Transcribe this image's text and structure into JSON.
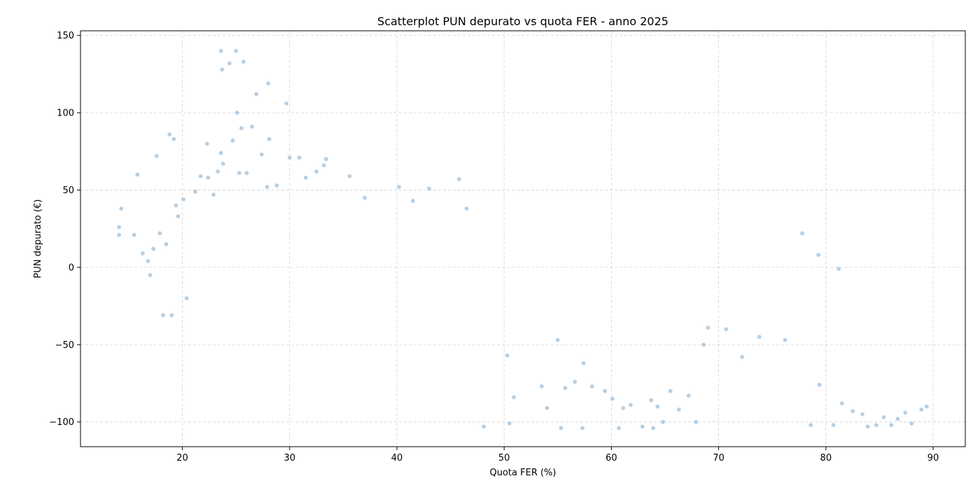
{
  "chart_data": {
    "type": "scatter",
    "title": "Scatterplot PUN depurato vs quota FER - anno 2025",
    "xlabel": "Quota FER (%)",
    "ylabel": "PUN depurato (€)",
    "xlim": [
      10.5,
      93
    ],
    "ylim": [
      -116,
      153
    ],
    "xticks": [
      20,
      30,
      40,
      50,
      60,
      70,
      80,
      90
    ],
    "yticks": [
      -100,
      -50,
      0,
      50,
      100,
      150
    ],
    "xtick_labels": [
      "20",
      "30",
      "40",
      "50",
      "60",
      "70",
      "80",
      "90"
    ],
    "ytick_labels": [
      "−100",
      "−50",
      "0",
      "50",
      "100",
      "150"
    ],
    "grid": true,
    "marker_color": "#4a86b8",
    "marker_opacity": 0.4,
    "series": [
      {
        "points": [
          [
            14.1,
            26
          ],
          [
            14.1,
            21
          ],
          [
            14.3,
            38
          ],
          [
            15.5,
            21
          ],
          [
            15.8,
            60
          ],
          [
            16.3,
            9
          ],
          [
            16.8,
            4
          ],
          [
            17.0,
            -5
          ],
          [
            17.3,
            12
          ],
          [
            17.6,
            72
          ],
          [
            17.9,
            22
          ],
          [
            18.2,
            -31
          ],
          [
            18.5,
            15
          ],
          [
            18.8,
            86
          ],
          [
            19.0,
            -31
          ],
          [
            19.2,
            83
          ],
          [
            19.4,
            40
          ],
          [
            19.6,
            33
          ],
          [
            20.1,
            44
          ],
          [
            20.4,
            -20
          ],
          [
            21.2,
            49
          ],
          [
            21.7,
            59
          ],
          [
            22.3,
            80
          ],
          [
            22.4,
            58
          ],
          [
            22.9,
            47
          ],
          [
            23.3,
            62
          ],
          [
            23.6,
            74
          ],
          [
            23.6,
            140
          ],
          [
            23.7,
            128
          ],
          [
            23.8,
            67
          ],
          [
            24.4,
            132
          ],
          [
            24.7,
            82
          ],
          [
            25.0,
            140
          ],
          [
            25.1,
            100
          ],
          [
            25.3,
            61
          ],
          [
            25.5,
            90
          ],
          [
            25.7,
            133
          ],
          [
            26.0,
            61
          ],
          [
            26.5,
            91
          ],
          [
            26.9,
            112
          ],
          [
            27.4,
            73
          ],
          [
            27.9,
            52
          ],
          [
            28.0,
            119
          ],
          [
            28.1,
            83
          ],
          [
            28.8,
            53
          ],
          [
            29.7,
            106
          ],
          [
            30.0,
            71
          ],
          [
            30.9,
            71
          ],
          [
            31.5,
            58
          ],
          [
            32.5,
            62
          ],
          [
            33.2,
            66
          ],
          [
            33.4,
            70
          ],
          [
            35.6,
            59
          ],
          [
            37.0,
            45
          ],
          [
            40.2,
            52
          ],
          [
            41.5,
            43
          ],
          [
            43.0,
            51
          ],
          [
            45.8,
            57
          ],
          [
            46.5,
            38
          ],
          [
            48.1,
            -103
          ],
          [
            50.3,
            -57
          ],
          [
            50.5,
            -101
          ],
          [
            50.9,
            -84
          ],
          [
            53.5,
            -77
          ],
          [
            54.0,
            -91
          ],
          [
            55.0,
            -47
          ],
          [
            55.3,
            -104
          ],
          [
            55.7,
            -78
          ],
          [
            56.6,
            -74
          ],
          [
            57.3,
            -104
          ],
          [
            57.4,
            -62
          ],
          [
            58.2,
            -77
          ],
          [
            59.4,
            -80
          ],
          [
            60.1,
            -85
          ],
          [
            60.7,
            -104
          ],
          [
            61.1,
            -91
          ],
          [
            61.8,
            -89
          ],
          [
            62.9,
            -103
          ],
          [
            63.7,
            -86
          ],
          [
            63.9,
            -104
          ],
          [
            64.3,
            -90
          ],
          [
            64.8,
            -100
          ],
          [
            65.5,
            -80
          ],
          [
            66.3,
            -92
          ],
          [
            67.2,
            -83
          ],
          [
            67.9,
            -100
          ],
          [
            68.6,
            -50
          ],
          [
            69.0,
            -39
          ],
          [
            70.7,
            -40
          ],
          [
            72.2,
            -58
          ],
          [
            73.8,
            -45
          ],
          [
            76.2,
            -47
          ],
          [
            78.6,
            -102
          ],
          [
            79.4,
            -76
          ],
          [
            80.7,
            -102
          ],
          [
            81.5,
            -88
          ],
          [
            82.5,
            -93
          ],
          [
            83.4,
            -95
          ],
          [
            83.9,
            -103
          ],
          [
            84.7,
            -102
          ],
          [
            85.4,
            -97
          ],
          [
            86.1,
            -102
          ],
          [
            86.7,
            -98
          ],
          [
            87.4,
            -94
          ],
          [
            88.0,
            -101
          ],
          [
            88.9,
            -92
          ],
          [
            89.4,
            -90
          ],
          [
            77.8,
            22
          ],
          [
            79.3,
            8
          ],
          [
            81.2,
            -1
          ]
        ]
      }
    ]
  }
}
